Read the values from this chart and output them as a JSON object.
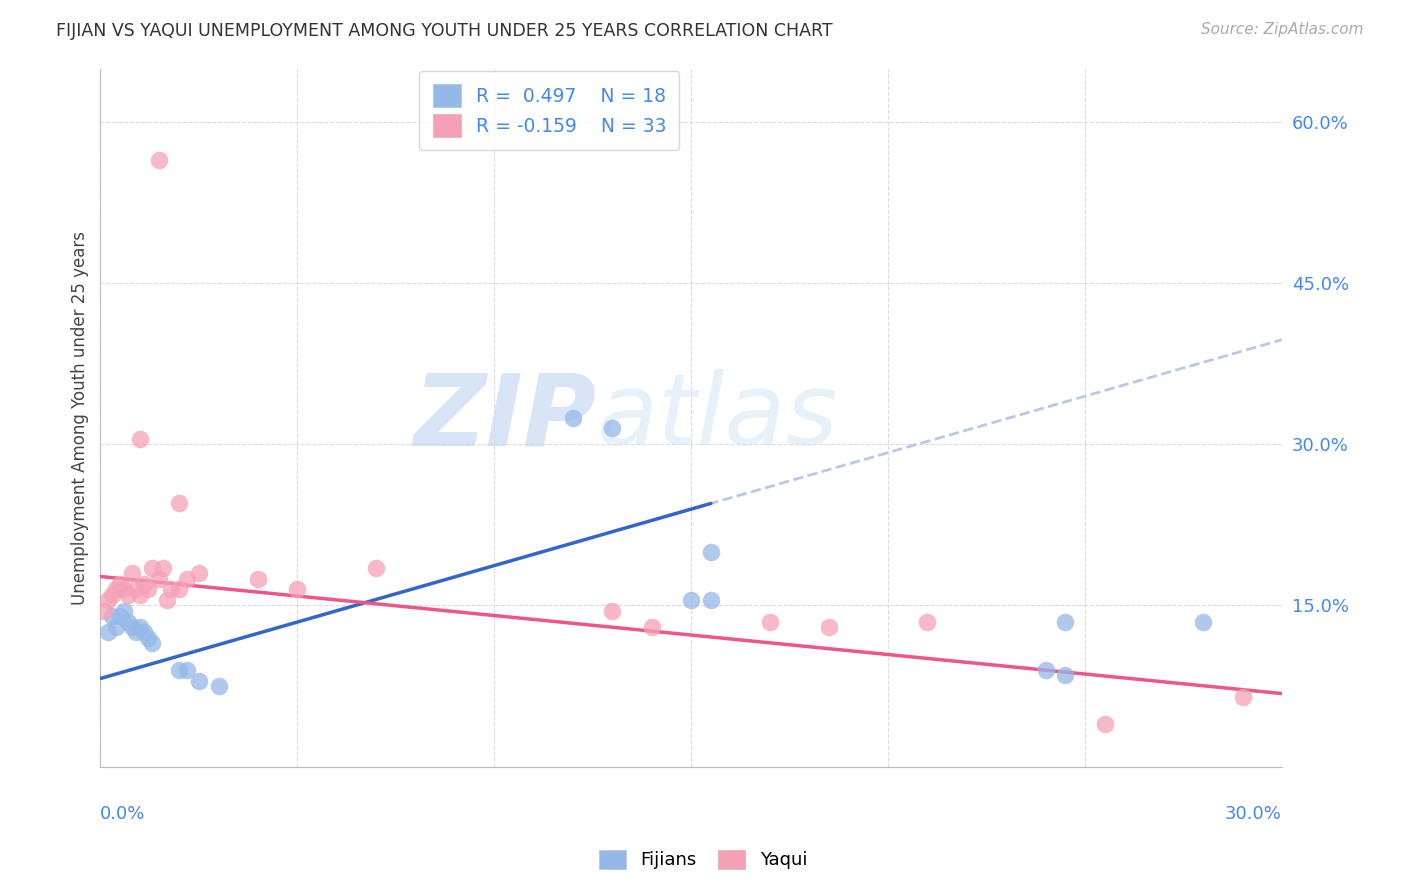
{
  "title": "FIJIAN VS YAQUI UNEMPLOYMENT AMONG YOUTH UNDER 25 YEARS CORRELATION CHART",
  "source": "Source: ZipAtlas.com",
  "ylabel": "Unemployment Among Youth under 25 years",
  "xlim": [
    0.0,
    0.3
  ],
  "ylim": [
    0.0,
    0.65
  ],
  "watermark_zip": "ZIP",
  "watermark_atlas": "atlas",
  "fijians_color": "#94b8e8",
  "yaqui_color": "#f5a0b5",
  "fijians_line_color": "#3366cc",
  "yaqui_line_color": "#ee5588",
  "fijians_scatter": [
    [
      0.002,
      0.125
    ],
    [
      0.003,
      0.14
    ],
    [
      0.004,
      0.13
    ],
    [
      0.005,
      0.14
    ],
    [
      0.006,
      0.145
    ],
    [
      0.007,
      0.135
    ],
    [
      0.008,
      0.13
    ],
    [
      0.009,
      0.125
    ],
    [
      0.01,
      0.13
    ],
    [
      0.011,
      0.125
    ],
    [
      0.012,
      0.12
    ],
    [
      0.013,
      0.115
    ],
    [
      0.02,
      0.09
    ],
    [
      0.022,
      0.09
    ],
    [
      0.025,
      0.08
    ],
    [
      0.03,
      0.075
    ],
    [
      0.12,
      0.325
    ],
    [
      0.13,
      0.315
    ],
    [
      0.155,
      0.2
    ],
    [
      0.245,
      0.135
    ],
    [
      0.15,
      0.155
    ],
    [
      0.155,
      0.155
    ],
    [
      0.24,
      0.09
    ],
    [
      0.245,
      0.085
    ],
    [
      0.28,
      0.135
    ]
  ],
  "yaqui_scatter": [
    [
      0.001,
      0.145
    ],
    [
      0.002,
      0.155
    ],
    [
      0.003,
      0.16
    ],
    [
      0.004,
      0.165
    ],
    [
      0.005,
      0.17
    ],
    [
      0.006,
      0.165
    ],
    [
      0.007,
      0.16
    ],
    [
      0.008,
      0.18
    ],
    [
      0.009,
      0.165
    ],
    [
      0.01,
      0.16
    ],
    [
      0.011,
      0.17
    ],
    [
      0.012,
      0.165
    ],
    [
      0.013,
      0.185
    ],
    [
      0.015,
      0.175
    ],
    [
      0.016,
      0.185
    ],
    [
      0.017,
      0.155
    ],
    [
      0.018,
      0.165
    ],
    [
      0.02,
      0.165
    ],
    [
      0.022,
      0.175
    ],
    [
      0.025,
      0.18
    ],
    [
      0.015,
      0.565
    ],
    [
      0.01,
      0.305
    ],
    [
      0.02,
      0.245
    ],
    [
      0.04,
      0.175
    ],
    [
      0.05,
      0.165
    ],
    [
      0.07,
      0.185
    ],
    [
      0.13,
      0.145
    ],
    [
      0.14,
      0.13
    ],
    [
      0.17,
      0.135
    ],
    [
      0.185,
      0.13
    ],
    [
      0.21,
      0.135
    ],
    [
      0.255,
      0.04
    ],
    [
      0.29,
      0.065
    ]
  ],
  "background_color": "#ffffff",
  "grid_color": "#cccccc"
}
